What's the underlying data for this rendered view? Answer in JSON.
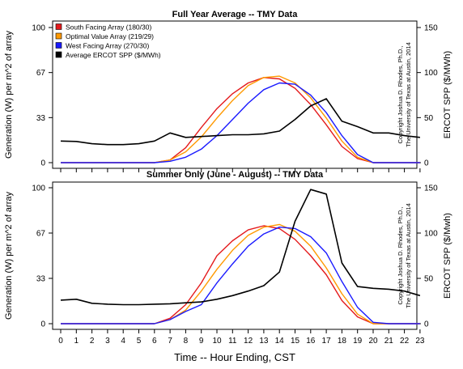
{
  "chart_data": [
    {
      "type": "line",
      "title": "Full Year Average -- TMY Data",
      "ylabel": "Generation (W) per  m^2 of array",
      "y2label": "ERCOT SPP ($/MWh)",
      "ylim": [
        0,
        100
      ],
      "y2lim": [
        0,
        150
      ],
      "yticks": [
        "0",
        "33",
        "67",
        "100"
      ],
      "y2ticks": [
        "0",
        "50",
        "100",
        "150"
      ],
      "x": [
        0,
        1,
        2,
        3,
        4,
        5,
        6,
        7,
        8,
        9,
        10,
        11,
        12,
        13,
        14,
        15,
        16,
        17,
        18,
        19,
        20,
        21,
        22,
        23
      ],
      "legend": {
        "placement": "top-left"
      },
      "copyright": [
        "Copyright Joshua D. Rhodes, Ph.D.,",
        "The University of Texas at Austin, 2014"
      ],
      "series": [
        {
          "name": "South Facing Array (180/30)",
          "color": "#e41a1c",
          "axis": "left",
          "values": [
            0,
            0,
            0,
            0,
            0,
            0,
            0,
            2,
            11,
            26,
            40,
            51,
            59,
            63,
            62,
            55,
            43,
            28,
            12,
            3,
            0,
            0,
            0,
            0
          ]
        },
        {
          "name": "Optimal Value Array (219/29)",
          "color": "#ff9900",
          "axis": "left",
          "values": [
            0,
            0,
            0,
            0,
            0,
            0,
            0,
            2,
            8,
            19,
            33,
            46,
            57,
            63,
            64,
            59,
            48,
            33,
            16,
            4,
            0,
            0,
            0,
            0
          ]
        },
        {
          "name": "West Facing Array (270/30)",
          "color": "#1a1aff",
          "axis": "left",
          "values": [
            0,
            0,
            0,
            0,
            0,
            0,
            0,
            1,
            4,
            10,
            20,
            32,
            44,
            54,
            59,
            58,
            50,
            37,
            20,
            6,
            0,
            0,
            0,
            0
          ]
        },
        {
          "name": "Average ERCOT SPP ($/MWh)",
          "color": "#000000",
          "axis": "right",
          "values": [
            24,
            23.5,
            21,
            20,
            20,
            21,
            24,
            33,
            28,
            29,
            30,
            31,
            31,
            32,
            35,
            48,
            63,
            71,
            46,
            40,
            33,
            33,
            30,
            28
          ]
        }
      ]
    },
    {
      "type": "line",
      "title": "Summer Only (June - August) -- TMY Data",
      "ylabel": "Generation (W) per m^2 of array",
      "y2label": "ERCOT SPP ($/Mwh)",
      "xlabel": "Time -- Hour Ending, CST",
      "ylim": [
        0,
        100
      ],
      "y2lim": [
        0,
        150
      ],
      "yticks": [
        "0",
        "33",
        "67",
        "100"
      ],
      "y2ticks": [
        "0",
        "50",
        "100",
        "150"
      ],
      "x": [
        0,
        1,
        2,
        3,
        4,
        5,
        6,
        7,
        8,
        9,
        10,
        11,
        12,
        13,
        14,
        15,
        16,
        17,
        18,
        19,
        20,
        21,
        22,
        23
      ],
      "xticks": [
        "0",
        "1",
        "2",
        "3",
        "4",
        "5",
        "6",
        "7",
        "8",
        "9",
        "10",
        "11",
        "12",
        "13",
        "14",
        "15",
        "16",
        "17",
        "18",
        "19",
        "20",
        "21",
        "22",
        "23"
      ],
      "copyright": [
        "Copyright Joshua D. Rhodes, Ph.D.,",
        "The University of Texas at Austin, 2014"
      ],
      "series": [
        {
          "name": "South Facing Array (180/30)",
          "color": "#e41a1c",
          "axis": "left",
          "values": [
            0,
            0,
            0,
            0,
            0,
            0,
            0,
            4,
            14,
            30,
            50,
            61,
            69,
            72,
            70,
            62,
            50,
            36,
            17,
            5,
            0,
            0,
            0,
            0
          ]
        },
        {
          "name": "Optimal Value Array (219/29)",
          "color": "#ff9900",
          "axis": "left",
          "values": [
            0,
            0,
            0,
            0,
            0,
            0,
            0,
            3,
            10,
            24,
            40,
            54,
            65,
            71,
            73,
            68,
            57,
            41,
            22,
            7,
            0,
            0,
            0,
            0
          ]
        },
        {
          "name": "West Facing Array (270/30)",
          "color": "#1a1aff",
          "axis": "left",
          "values": [
            0,
            0,
            0,
            0,
            0,
            0,
            0,
            3,
            9,
            14,
            30,
            44,
            57,
            66,
            71,
            70,
            64,
            52,
            31,
            12,
            1,
            0,
            0,
            0
          ]
        },
        {
          "name": "Average ERCOT SPP ($/Mwh)",
          "color": "#000000",
          "axis": "right",
          "values": [
            26,
            27,
            22.5,
            21.5,
            21,
            21,
            21.5,
            22,
            23,
            24,
            27,
            31,
            36,
            42,
            57,
            113,
            148,
            143,
            67,
            41,
            39,
            38,
            36,
            31
          ]
        }
      ]
    }
  ]
}
